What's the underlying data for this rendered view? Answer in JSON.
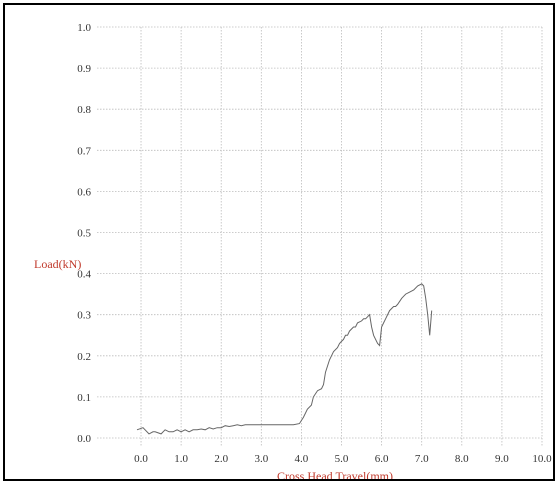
{
  "chart_data": {
    "type": "line",
    "title": "",
    "xlabel": "Cross Head Travel(mm)",
    "ylabel": "Load(kN)",
    "xlim": [
      -0.2,
      10.0
    ],
    "ylim": [
      0.0,
      1.0
    ],
    "grid": true,
    "x_ticks": [
      "0.0",
      "1.0",
      "2.0",
      "3.0",
      "4.0",
      "5.0",
      "6.0",
      "7.0",
      "8.0",
      "9.0",
      "10.0"
    ],
    "y_ticks": [
      "0.0",
      "0.1",
      "0.2",
      "0.3",
      "0.4",
      "0.5",
      "0.6",
      "0.7",
      "0.8",
      "0.9",
      "1.0"
    ],
    "x_tick_values": [
      0,
      1,
      2,
      3,
      4,
      5,
      6,
      7,
      8,
      9,
      10
    ],
    "y_tick_values": [
      0,
      0.1,
      0.2,
      0.3,
      0.4,
      0.5,
      0.6,
      0.7,
      0.8,
      0.9,
      1.0
    ],
    "colors": {
      "axis_label": "#c0392b",
      "series": "#666666",
      "grid": "#bcbcbc"
    },
    "series": [
      {
        "x": [
          -0.1,
          0.05,
          0.2,
          0.3,
          0.35,
          0.5,
          0.6,
          0.7,
          0.8,
          0.9,
          1.0,
          1.1,
          1.2,
          1.3,
          1.4,
          1.5,
          1.6,
          1.7,
          1.8,
          1.9,
          2.0,
          2.1,
          2.2,
          2.3,
          2.4,
          2.5,
          2.6,
          2.8,
          3.0,
          3.2,
          3.4,
          3.6,
          3.8,
          3.95,
          4.05,
          4.15,
          4.25,
          4.3,
          4.4,
          4.5,
          4.55,
          4.6,
          4.7,
          4.75,
          4.8,
          4.9,
          4.95,
          5.0,
          5.05,
          5.1,
          5.15,
          5.2,
          5.3,
          5.35,
          5.4,
          5.5,
          5.55,
          5.6,
          5.7,
          5.75,
          5.8,
          5.9,
          5.95,
          6.0,
          6.05,
          6.1,
          6.2,
          6.3,
          6.35,
          6.4,
          6.5,
          6.55,
          6.6,
          6.7,
          6.8,
          6.9,
          7.0,
          7.05,
          7.1,
          7.15,
          7.2,
          7.25
        ],
        "y": [
          0.02,
          0.025,
          0.01,
          0.015,
          0.015,
          0.01,
          0.02,
          0.015,
          0.015,
          0.02,
          0.015,
          0.02,
          0.015,
          0.02,
          0.02,
          0.022,
          0.02,
          0.025,
          0.022,
          0.025,
          0.025,
          0.03,
          0.028,
          0.03,
          0.032,
          0.03,
          0.032,
          0.032,
          0.032,
          0.032,
          0.032,
          0.032,
          0.032,
          0.035,
          0.05,
          0.07,
          0.08,
          0.1,
          0.115,
          0.12,
          0.13,
          0.16,
          0.19,
          0.2,
          0.21,
          0.22,
          0.23,
          0.235,
          0.24,
          0.25,
          0.25,
          0.26,
          0.27,
          0.27,
          0.28,
          0.285,
          0.29,
          0.29,
          0.3,
          0.27,
          0.25,
          0.23,
          0.225,
          0.27,
          0.28,
          0.29,
          0.31,
          0.32,
          0.32,
          0.325,
          0.34,
          0.345,
          0.35,
          0.355,
          0.36,
          0.37,
          0.375,
          0.37,
          0.34,
          0.3,
          0.25,
          0.31
        ]
      }
    ]
  }
}
